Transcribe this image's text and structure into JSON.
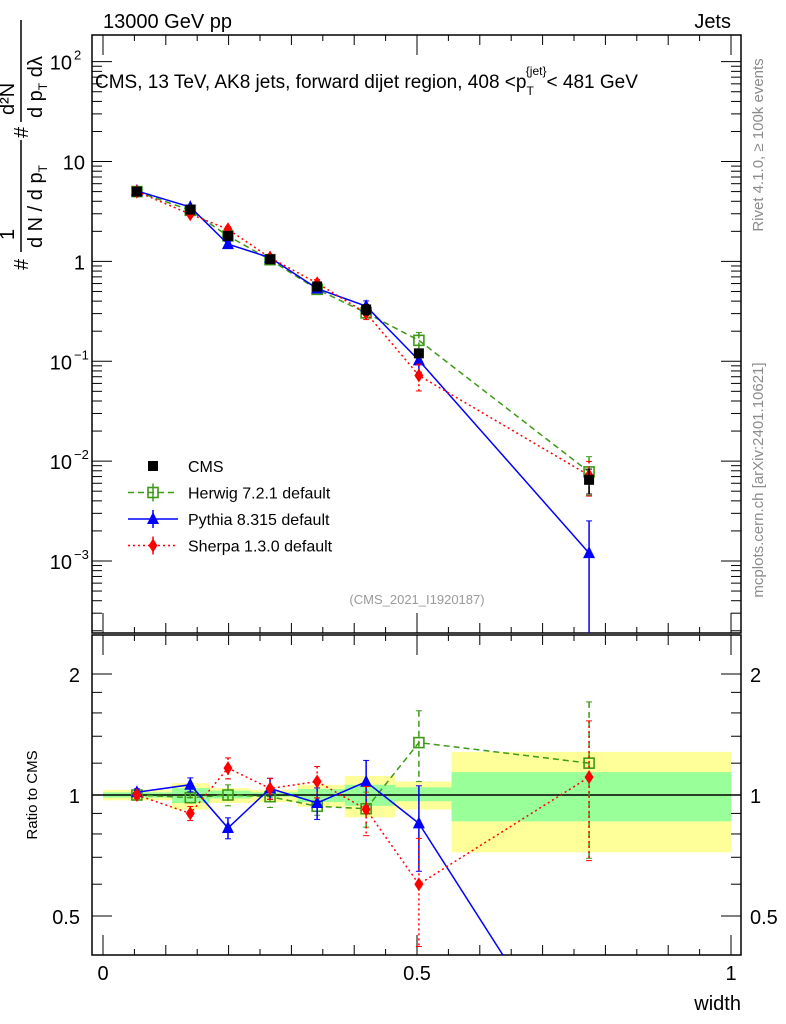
{
  "header": {
    "left": "13000 GeV pp",
    "right": "Jets"
  },
  "side_labels": {
    "rivet": "Rivet 4.1.0, ≥ 100k events",
    "mcplots": "mcplots.cern.ch [arXiv:2401.10621]"
  },
  "analysis_id": "(CMS_2021_I1920187)",
  "chart_data": [
    {
      "type": "line",
      "panel": "main",
      "title_parts": {
        "pre": "CMS, 13 TeV, AK8 jets, forward dijet region, 408 <p",
        "sub": "T",
        "sup": "{jet}",
        "post": "< 481 GeV"
      },
      "ylabel_parts": {
        "hash1": "#",
        "num1": "1",
        "den1": "d N / d p",
        "den1_sub": "T",
        "hash2": "#",
        "num2": "d²N",
        "den2": "d p",
        "den2_sub": "T",
        "den2_post": " dλ"
      },
      "xlabel": "width",
      "yscale": "log",
      "ylim": [
        0.00019,
        185
      ],
      "xlim": [
        0,
        1
      ],
      "ytick_labels": [
        {
          "base": "10",
          "exp": "−3",
          "value": 0.001
        },
        {
          "base": "10",
          "exp": "−2",
          "value": 0.01
        },
        {
          "base": "10",
          "exp": "−1",
          "value": 0.1
        },
        {
          "base": "1",
          "exp": "",
          "value": 1
        },
        {
          "base": "10",
          "exp": "",
          "value": 10
        },
        {
          "base": "10",
          "exp": "2",
          "value": 100
        }
      ],
      "bin_edges": [
        0,
        0.11,
        0.17,
        0.235,
        0.31,
        0.385,
        0.465,
        0.555,
        1.0
      ],
      "x": [
        0.054,
        0.139,
        0.199,
        0.266,
        0.341,
        0.419,
        0.503,
        0.774
      ],
      "legend_position": "bottom-left",
      "series": [
        {
          "name": "CMS",
          "color": "#000000",
          "marker": "square-filled",
          "dash": "none",
          "values": [
            5.0,
            3.3,
            1.8,
            1.05,
            0.56,
            0.33,
            0.12,
            0.0065
          ],
          "rel_err": [
            0.02,
            0.03,
            0.04,
            0.03,
            0.06,
            0.12,
            0.08,
            0.28
          ]
        },
        {
          "name": "Herwig 7.2.1 default",
          "color": "#3c9a14",
          "marker": "square-open",
          "dash": "6,4",
          "values": [
            5.0,
            3.25,
            1.8,
            1.04,
            0.525,
            0.305,
            0.162,
            0.0078
          ],
          "rel_err": [
            0.02,
            0.03,
            0.06,
            0.06,
            0.05,
            0.1,
            0.2,
            0.42
          ]
        },
        {
          "name": "Pythia 8.315 default",
          "color": "#0000ff",
          "marker": "triangle",
          "dash": "none",
          "values": [
            5.08,
            3.5,
            1.49,
            1.09,
            0.535,
            0.356,
            0.102,
            0.0012
          ],
          "rel_err": [
            0.02,
            0.04,
            0.06,
            0.06,
            0.09,
            0.13,
            0.24,
            1.1
          ]
        },
        {
          "name": "Sherpa 1.3.0 default",
          "color": "#ff0000",
          "marker": "diamond",
          "dash": "2,3",
          "values": [
            5.0,
            2.97,
            2.1,
            1.09,
            0.605,
            0.304,
            0.072,
            0.0072
          ],
          "rel_err": [
            0.02,
            0.04,
            0.06,
            0.06,
            0.09,
            0.14,
            0.3,
            0.38
          ]
        }
      ]
    },
    {
      "type": "line",
      "panel": "ratio",
      "ylabel": "Ratio to CMS",
      "yscale": "log2",
      "ylim": [
        0.4,
        2.5
      ],
      "ytick_labels": [
        {
          "label": "0.5",
          "value": 0.5
        },
        {
          "label": "1",
          "value": 1
        },
        {
          "label": "2",
          "value": 2
        }
      ],
      "xtick_labels": [
        {
          "label": "0",
          "value": 0
        },
        {
          "label": "0.5",
          "value": 0.5
        },
        {
          "label": "1",
          "value": 1
        }
      ],
      "band_yellow": [
        [
          0.97,
          1.03
        ],
        [
          0.92,
          1.07
        ],
        [
          0.955,
          1.04
        ],
        [
          0.96,
          1.03
        ],
        [
          0.935,
          1.06
        ],
        [
          0.88,
          1.115
        ],
        [
          0.92,
          1.08
        ],
        [
          0.72,
          1.28
        ]
      ],
      "band_green": [
        [
          0.985,
          1.015
        ],
        [
          0.955,
          1.04
        ],
        [
          0.98,
          1.025
        ],
        [
          0.99,
          1.015
        ],
        [
          0.96,
          1.035
        ],
        [
          0.94,
          1.06
        ],
        [
          0.965,
          1.045
        ],
        [
          0.86,
          1.14
        ]
      ]
    }
  ]
}
